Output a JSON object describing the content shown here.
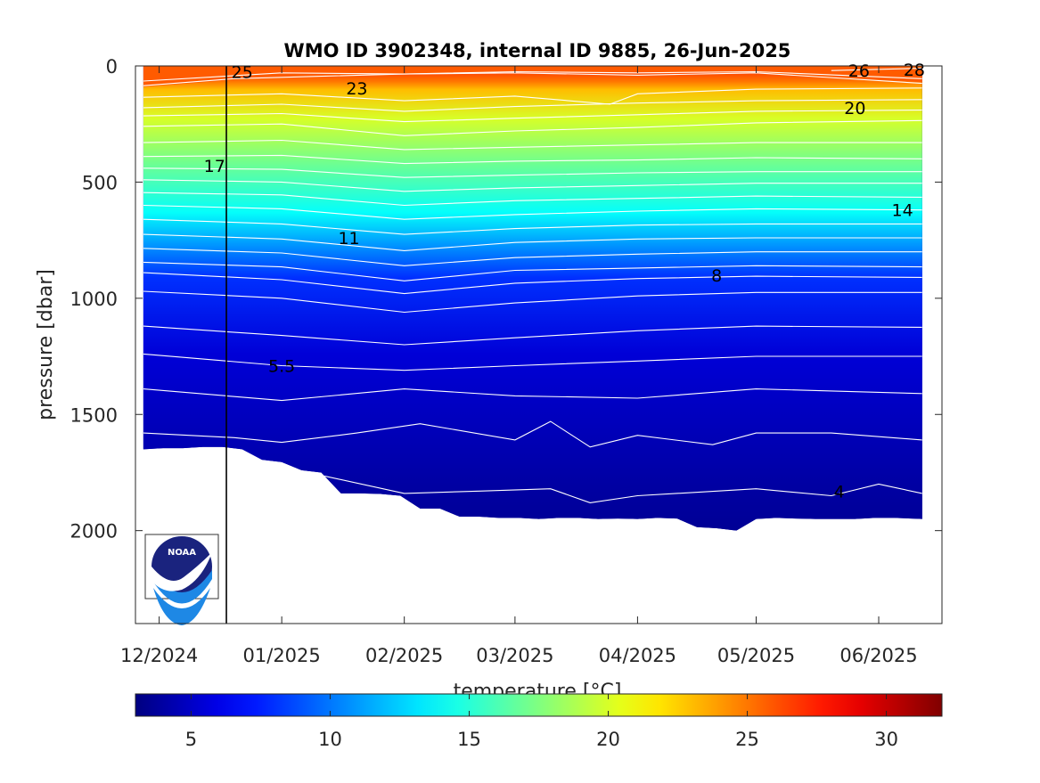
{
  "chart_data": {
    "type": "heatmap",
    "title": "WMO ID 3902348, internal ID 9885, 26-Jun-2025",
    "xlabel": "",
    "ylabel": "pressure [dbar]",
    "x_tick_labels": [
      "12/2024",
      "01/2025",
      "02/2025",
      "03/2025",
      "04/2025",
      "05/2025",
      "06/2025"
    ],
    "x_ticks": [
      "2024-12-01",
      "2025-01-01",
      "2025-02-01",
      "2025-03-01",
      "2025-04-01",
      "2025-05-01",
      "2025-06-01"
    ],
    "x_range": [
      "2024-11-25",
      "2025-06-17"
    ],
    "y_ticks": [
      0,
      500,
      1000,
      1500,
      2000
    ],
    "ylim": [
      2400,
      0
    ],
    "y_reversed": true,
    "profile_start": "2024-11-27",
    "profile_end": "2025-06-12",
    "marker_line_date": "2024-12-18",
    "bottom_depth": {
      "dates": [
        "2024-11-27",
        "2024-12-02",
        "2024-12-07",
        "2024-12-12",
        "2024-12-17",
        "2024-12-22",
        "2024-12-27",
        "2025-01-01",
        "2025-01-06",
        "2025-01-11",
        "2025-01-16",
        "2025-01-21",
        "2025-01-26",
        "2025-01-31",
        "2025-02-05",
        "2025-02-10",
        "2025-02-15",
        "2025-02-20",
        "2025-02-25",
        "2025-03-02",
        "2025-03-07",
        "2025-03-12",
        "2025-03-17",
        "2025-03-22",
        "2025-03-27",
        "2025-04-01",
        "2025-04-06",
        "2025-04-11",
        "2025-04-16",
        "2025-04-21",
        "2025-04-26",
        "2025-05-01",
        "2025-05-06",
        "2025-05-11",
        "2025-05-16",
        "2025-05-21",
        "2025-05-26",
        "2025-05-31",
        "2025-06-05",
        "2025-06-12"
      ],
      "pressure": [
        1650,
        1645,
        1645,
        1640,
        1640,
        1650,
        1695,
        1705,
        1740,
        1750,
        1840,
        1840,
        1842,
        1850,
        1905,
        1905,
        1940,
        1940,
        1945,
        1945,
        1950,
        1945,
        1945,
        1950,
        1948,
        1950,
        1945,
        1948,
        1985,
        1990,
        2000,
        1950,
        1945,
        1948,
        1950,
        1950,
        1950,
        1945,
        1945,
        1950
      ]
    },
    "temperature_layers": [
      {
        "upper_isotherm_c": 28,
        "lower_isotherm_c": 26,
        "layer_depth": {
          "dates": [
            "2024-11-27",
            "2025-06-12"
          ],
          "pressure": [
            20,
            60
          ]
        }
      },
      {
        "upper_isotherm_c": 26,
        "lower_isotherm_c": 25,
        "layer_depth": {
          "dates": [
            "2024-11-27",
            "2025-06-12"
          ],
          "pressure": [
            60,
            75
          ]
        }
      },
      {
        "upper_isotherm_c": 25,
        "lower_isotherm_c": 23,
        "layer_depth": {
          "dates": [
            "2024-11-27",
            "2025-06-12"
          ],
          "pressure": [
            110,
            95
          ]
        }
      },
      {
        "upper_isotherm_c": 23,
        "lower_isotherm_c": 20,
        "layer_depth": {
          "dates": [
            "2024-11-27",
            "2025-06-12"
          ],
          "pressure": [
            240,
            215
          ]
        }
      },
      {
        "upper_isotherm_c": 20,
        "lower_isotherm_c": 17,
        "layer_depth": {
          "dates": [
            "2024-11-27",
            "2025-06-12"
          ],
          "pressure": [
            420,
            420
          ]
        }
      },
      {
        "upper_isotherm_c": 17,
        "lower_isotherm_c": 14,
        "layer_depth": {
          "dates": [
            "2024-11-27",
            "2025-06-12"
          ],
          "pressure": [
            630,
            630
          ]
        }
      },
      {
        "upper_isotherm_c": 14,
        "lower_isotherm_c": 11,
        "layer_depth": {
          "dates": [
            "2024-11-27",
            "2025-06-12"
          ],
          "pressure": [
            760,
            770
          ]
        }
      },
      {
        "upper_isotherm_c": 11,
        "lower_isotherm_c": 8,
        "layer_depth": {
          "dates": [
            "2024-11-27",
            "2025-06-12"
          ],
          "pressure": [
            900,
            920
          ]
        }
      },
      {
        "upper_isotherm_c": 8,
        "lower_isotherm_c": 5.5,
        "layer_depth": {
          "dates": [
            "2024-11-27",
            "2025-06-12"
          ],
          "pressure": [
            1250,
            1230
          ]
        }
      },
      {
        "upper_isotherm_c": 5.5,
        "lower_isotherm_c": 4,
        "layer_depth": {
          "dates": [
            "2024-11-27",
            "2025-06-12"
          ],
          "pressure": [
            1800,
            1800
          ]
        }
      }
    ],
    "isotherms": [
      {
        "value": 28,
        "dates": [
          "2025-05-20",
          "2025-06-12"
        ],
        "pressure": [
          20,
          10
        ]
      },
      {
        "value": 26,
        "dates": [
          "2024-11-27",
          "2025-01-01",
          "2025-02-01",
          "2025-03-01",
          "2025-04-01",
          "2025-05-01",
          "2025-06-12"
        ],
        "pressure": [
          65,
          30,
          35,
          25,
          30,
          25,
          55
        ]
      },
      {
        "value": 25,
        "dates": [
          "2024-11-27",
          "2024-12-20",
          "2025-01-10",
          "2025-02-01",
          "2025-03-01",
          "2025-04-01",
          "2025-05-01",
          "2025-06-12"
        ],
        "pressure": [
          85,
          55,
          45,
          35,
          30,
          40,
          30,
          75
        ]
      },
      {
        "value": 23,
        "dates": [
          "2024-11-27",
          "2025-01-01",
          "2025-02-01",
          "2025-03-01",
          "2025-03-25",
          "2025-04-01",
          "2025-05-01",
          "2025-06-12"
        ],
        "pressure": [
          135,
          120,
          150,
          130,
          165,
          120,
          100,
          95
        ]
      },
      {
        "value": 22,
        "dates": [
          "2024-11-27",
          "2025-01-01",
          "2025-02-01",
          "2025-03-01",
          "2025-04-01",
          "2025-05-01",
          "2025-06-12"
        ],
        "pressure": [
          180,
          165,
          195,
          175,
          160,
          150,
          145
        ]
      },
      {
        "value": 21,
        "dates": [
          "2024-11-27",
          "2025-01-01",
          "2025-02-01",
          "2025-03-01",
          "2025-04-01",
          "2025-05-01",
          "2025-06-12"
        ],
        "pressure": [
          215,
          205,
          240,
          225,
          210,
          195,
          190
        ]
      },
      {
        "value": 20,
        "dates": [
          "2024-11-27",
          "2025-01-01",
          "2025-02-01",
          "2025-03-01",
          "2025-04-01",
          "2025-05-01",
          "2025-06-12"
        ],
        "pressure": [
          260,
          250,
          300,
          280,
          265,
          245,
          235
        ]
      },
      {
        "value": 19,
        "dates": [
          "2024-11-27",
          "2025-01-01",
          "2025-02-01",
          "2025-03-01",
          "2025-04-01",
          "2025-05-01",
          "2025-06-12"
        ],
        "pressure": [
          330,
          320,
          360,
          350,
          340,
          330,
          330
        ]
      },
      {
        "value": 18,
        "dates": [
          "2024-11-27",
          "2025-01-01",
          "2025-02-01",
          "2025-03-01",
          "2025-04-01",
          "2025-05-01",
          "2025-06-12"
        ],
        "pressure": [
          390,
          385,
          420,
          410,
          405,
          395,
          400
        ]
      },
      {
        "value": 17,
        "dates": [
          "2024-11-27",
          "2025-01-01",
          "2025-02-01",
          "2025-03-01",
          "2025-04-01",
          "2025-05-01",
          "2025-06-12"
        ],
        "pressure": [
          440,
          445,
          480,
          470,
          460,
          455,
          455
        ]
      },
      {
        "value": 16,
        "dates": [
          "2024-11-27",
          "2025-01-01",
          "2025-02-01",
          "2025-03-01",
          "2025-04-01",
          "2025-05-01",
          "2025-06-12"
        ],
        "pressure": [
          490,
          500,
          540,
          525,
          515,
          505,
          505
        ]
      },
      {
        "value": 15,
        "dates": [
          "2024-11-27",
          "2025-01-01",
          "2025-02-01",
          "2025-03-01",
          "2025-04-01",
          "2025-05-01",
          "2025-06-12"
        ],
        "pressure": [
          545,
          555,
          600,
          580,
          570,
          560,
          565
        ]
      },
      {
        "value": 14,
        "dates": [
          "2024-11-27",
          "2025-01-01",
          "2025-02-01",
          "2025-03-01",
          "2025-04-01",
          "2025-05-01",
          "2025-06-12"
        ],
        "pressure": [
          600,
          615,
          660,
          640,
          625,
          615,
          620
        ]
      },
      {
        "value": 13,
        "dates": [
          "2024-11-27",
          "2025-01-01",
          "2025-02-01",
          "2025-03-01",
          "2025-04-01",
          "2025-05-01",
          "2025-06-12"
        ],
        "pressure": [
          660,
          680,
          725,
          700,
          685,
          680,
          680
        ]
      },
      {
        "value": 12,
        "dates": [
          "2024-11-27",
          "2025-01-01",
          "2025-02-01",
          "2025-03-01",
          "2025-04-01",
          "2025-05-01",
          "2025-06-12"
        ],
        "pressure": [
          725,
          745,
          795,
          760,
          745,
          740,
          740
        ]
      },
      {
        "value": 11,
        "dates": [
          "2024-11-27",
          "2025-01-01",
          "2025-02-01",
          "2025-03-01",
          "2025-04-01",
          "2025-05-01",
          "2025-06-12"
        ],
        "pressure": [
          785,
          805,
          860,
          825,
          810,
          800,
          800
        ]
      },
      {
        "value": 10,
        "dates": [
          "2024-11-27",
          "2025-01-01",
          "2025-02-01",
          "2025-03-01",
          "2025-04-01",
          "2025-05-01",
          "2025-06-12"
        ],
        "pressure": [
          845,
          865,
          925,
          880,
          870,
          860,
          865
        ]
      },
      {
        "value": 9,
        "dates": [
          "2024-11-27",
          "2025-01-01",
          "2025-02-01",
          "2025-03-01",
          "2025-04-01",
          "2025-05-01",
          "2025-06-12"
        ],
        "pressure": [
          890,
          920,
          980,
          935,
          915,
          905,
          910
        ]
      },
      {
        "value": 8,
        "dates": [
          "2024-11-27",
          "2025-01-01",
          "2025-02-01",
          "2025-03-01",
          "2025-04-01",
          "2025-05-01",
          "2025-06-12"
        ],
        "pressure": [
          970,
          1000,
          1060,
          1020,
          990,
          975,
          975
        ]
      },
      {
        "value": 7,
        "dates": [
          "2024-11-27",
          "2025-01-01",
          "2025-02-01",
          "2025-03-01",
          "2025-04-01",
          "2025-05-01",
          "2025-06-12"
        ],
        "pressure": [
          1120,
          1160,
          1200,
          1170,
          1140,
          1120,
          1125
        ]
      },
      {
        "value": 6,
        "dates": [
          "2024-11-27",
          "2025-01-01",
          "2025-02-01",
          "2025-03-01",
          "2025-04-01",
          "2025-05-01",
          "2025-06-12"
        ],
        "pressure": [
          1240,
          1290,
          1310,
          1290,
          1270,
          1250,
          1250
        ]
      },
      {
        "value": 5.5,
        "dates": [
          "2024-11-27",
          "2025-01-01",
          "2025-02-01",
          "2025-03-01",
          "2025-04-01",
          "2025-05-01",
          "2025-06-12"
        ],
        "pressure": [
          1390,
          1440,
          1390,
          1420,
          1430,
          1390,
          1410
        ]
      },
      {
        "value": 5,
        "dates": [
          "2024-11-27",
          "2024-12-20",
          "2025-01-01",
          "2025-01-20",
          "2025-02-05",
          "2025-03-01",
          "2025-03-10",
          "2025-03-20",
          "2025-04-01",
          "2025-04-20",
          "2025-05-01",
          "2025-05-20",
          "2025-06-12"
        ],
        "pressure": [
          1580,
          1600,
          1620,
          1580,
          1540,
          1610,
          1530,
          1640,
          1590,
          1630,
          1580,
          1580,
          1610
        ]
      },
      {
        "value": 4,
        "dates": [
          "2024-12-20",
          "2025-01-05",
          "2025-02-01",
          "2025-02-20",
          "2025-03-10",
          "2025-03-20",
          "2025-04-01",
          "2025-05-01",
          "2025-05-20",
          "2025-06-01",
          "2025-06-12"
        ],
        "pressure": [
          1700,
          1740,
          1840,
          1830,
          1820,
          1880,
          1850,
          1820,
          1850,
          1800,
          1840
        ]
      }
    ],
    "contour_labels": [
      {
        "text": "25",
        "date": "2024-12-22",
        "pressure": 25
      },
      {
        "text": "23",
        "date": "2025-01-20",
        "pressure": 95
      },
      {
        "text": "26",
        "date": "2025-05-27",
        "pressure": 20
      },
      {
        "text": "28",
        "date": "2025-06-10",
        "pressure": 15
      },
      {
        "text": "20",
        "date": "2025-05-26",
        "pressure": 180
      },
      {
        "text": "17",
        "date": "2024-12-15",
        "pressure": 430
      },
      {
        "text": "14",
        "date": "2025-06-07",
        "pressure": 620
      },
      {
        "text": "11",
        "date": "2025-01-18",
        "pressure": 740
      },
      {
        "text": "8",
        "date": "2025-04-21",
        "pressure": 900
      },
      {
        "text": "5.5",
        "date": "2025-01-01",
        "pressure": 1290
      },
      {
        "text": "4",
        "date": "2025-05-22",
        "pressure": 1830
      }
    ],
    "colorbar": {
      "label": "temperature [°C]",
      "range": [
        3,
        32
      ],
      "ticks": [
        5,
        10,
        15,
        20,
        25,
        30
      ],
      "colormap": "jet"
    }
  },
  "logo": {
    "text": "NOAA",
    "colors": {
      "navy": "#1a237e",
      "sky": "#1e88e5"
    }
  },
  "colors": {
    "contour_line": "#ffffff",
    "axis": "#262626",
    "marker_line": "#000000"
  }
}
